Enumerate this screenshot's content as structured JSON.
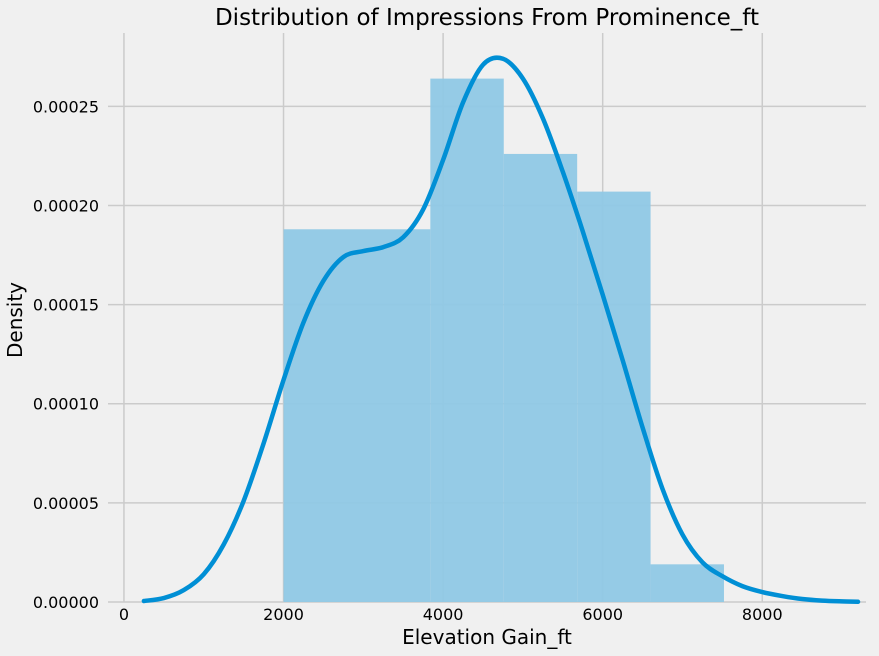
{
  "chart_data": {
    "type": "histogram",
    "title": "Distribution of Impressions From  Prominence_ft",
    "xlabel": "Elevation Gain_ft",
    "ylabel": "Density",
    "xlim": [
      -200,
      9300
    ],
    "ylim": [
      0,
      0.000287
    ],
    "x_ticks": [
      0,
      2000,
      4000,
      6000,
      8000
    ],
    "x_tick_labels": [
      "0",
      "2000",
      "4000",
      "6000",
      "8000"
    ],
    "y_ticks": [
      0,
      5e-05,
      0.0001,
      0.00015,
      0.0002,
      0.00025
    ],
    "y_tick_labels": [
      "0.00000",
      "0.00005",
      "0.00010",
      "0.00015",
      "0.00020",
      "0.00025"
    ],
    "grid": true,
    "bar_color": "#8fc8e5",
    "kde_color": "#008fd5",
    "background_color": "#f0f0f0",
    "grid_color": "#cbcbcb",
    "bins": [
      {
        "x0": 2000,
        "x1": 3840,
        "density": 0.000188
      },
      {
        "x0": 3840,
        "x1": 4760,
        "density": 0.000264
      },
      {
        "x0": 4760,
        "x1": 5680,
        "density": 0.000226
      },
      {
        "x0": 5680,
        "x1": 6600,
        "density": 0.000207
      },
      {
        "x0": 6600,
        "x1": 7520,
        "density": 1.9e-05
      }
    ],
    "kde": {
      "x": [
        250,
        500,
        750,
        1000,
        1250,
        1500,
        1750,
        2000,
        2250,
        2500,
        2750,
        3000,
        3250,
        3500,
        3750,
        4000,
        4250,
        4500,
        4750,
        5000,
        5250,
        5500,
        5750,
        6000,
        6250,
        6500,
        6750,
        7000,
        7250,
        7500,
        7750,
        8000,
        8250,
        8500,
        8750,
        9000,
        9200
      ],
      "y": [
        5e-07,
        2e-06,
        6e-06,
        1.4e-05,
        2.9e-05,
        5.1e-05,
        8e-05,
        0.000112,
        0.000141,
        0.000162,
        0.000174,
        0.000177,
        0.000179,
        0.000184,
        0.000198,
        0.000223,
        0.000252,
        0.000271,
        0.000274,
        0.000264,
        0.000244,
        0.000217,
        0.000187,
        0.000155,
        0.000122,
        8.8e-05,
        5.7e-05,
        3.4e-05,
        2e-05,
        1.3e-05,
        8e-06,
        5e-06,
        3e-06,
        1.5e-06,
        7e-07,
        3e-07,
        1e-07
      ]
    }
  }
}
